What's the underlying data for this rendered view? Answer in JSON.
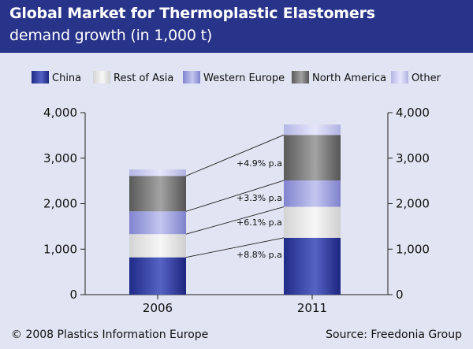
{
  "header": {
    "title": "Global Market for Thermoplastic Elastomers",
    "subtitle": "demand growth (in 1,000 t)"
  },
  "footer": {
    "copyright": "© 2008 Plastics Information Europe",
    "source": "Source: Freedonia Group"
  },
  "colors": {
    "header_bg": "#28338a",
    "panel_bg": "#e1e4f2",
    "China": "#2b3a9c",
    "Rest of Asia": "#ececec",
    "Western Europe": "#9ea0dc",
    "North America": "#7a7a7a",
    "Other": "#c9caee"
  },
  "chart_data": {
    "type": "bar",
    "stacked": true,
    "categories": [
      "2006",
      "2011"
    ],
    "series": [
      {
        "name": "China",
        "values": [
          820,
          1250
        ]
      },
      {
        "name": "Rest of Asia",
        "values": [
          510,
          680
        ]
      },
      {
        "name": "Western Europe",
        "values": [
          500,
          580
        ]
      },
      {
        "name": "North America",
        "values": [
          780,
          1000
        ]
      },
      {
        "name": "Other",
        "values": [
          140,
          230
        ]
      }
    ],
    "growth_labels": [
      "+8.8% p.a",
      "+6.1% p.a",
      "+3.3% p.a",
      "+4.9% p.a"
    ],
    "yticks": [
      "0",
      "1,000",
      "2,000",
      "3,000",
      "4,000"
    ],
    "ylim": [
      0,
      4000
    ],
    "legend_position": "top",
    "secondary_y_axis": true,
    "grid": false
  }
}
